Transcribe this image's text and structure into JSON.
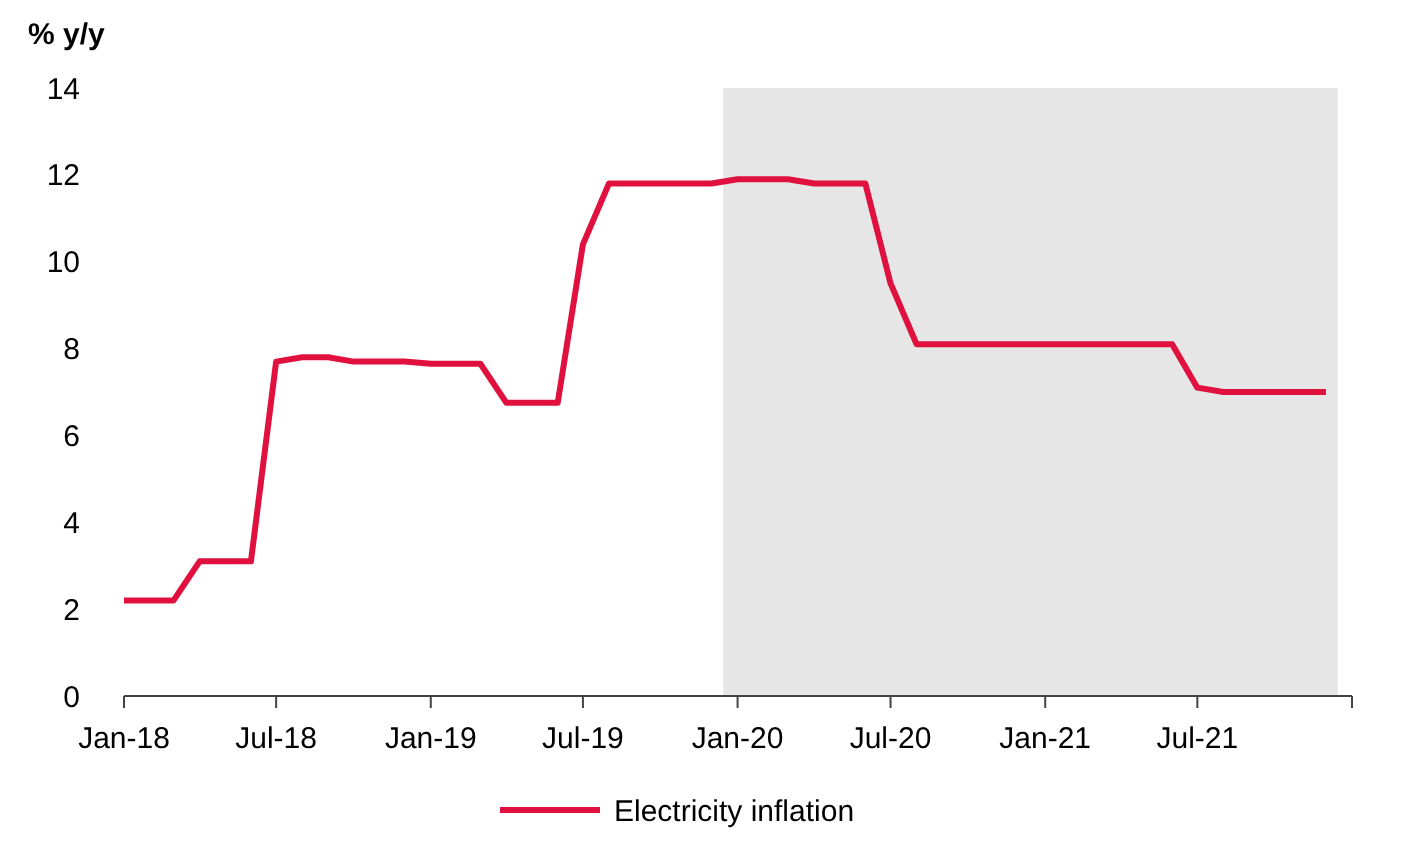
{
  "chart_data": {
    "type": "line",
    "ylabel": "% y/y",
    "x": [
      "2018-01",
      "2018-02",
      "2018-03",
      "2018-04",
      "2018-05",
      "2018-06",
      "2018-07",
      "2018-08",
      "2018-09",
      "2018-10",
      "2018-11",
      "2018-12",
      "2019-01",
      "2019-02",
      "2019-03",
      "2019-04",
      "2019-05",
      "2019-06",
      "2019-07",
      "2019-08",
      "2019-09",
      "2019-10",
      "2019-11",
      "2019-12",
      "2020-01",
      "2020-02",
      "2020-03",
      "2020-04",
      "2020-05",
      "2020-06",
      "2020-07",
      "2020-08",
      "2020-09",
      "2020-10",
      "2020-11",
      "2020-12",
      "2021-01",
      "2021-02",
      "2021-03",
      "2021-04",
      "2021-05",
      "2021-06",
      "2021-07",
      "2021-08",
      "2021-09",
      "2021-10",
      "2021-11",
      "2021-12"
    ],
    "series": [
      {
        "name": "Electricity inflation",
        "color": "#e0103f",
        "values": [
          2.2,
          2.2,
          2.2,
          3.1,
          3.1,
          3.1,
          7.7,
          7.8,
          7.8,
          7.7,
          7.7,
          7.7,
          7.65,
          7.65,
          7.65,
          6.75,
          6.75,
          6.75,
          10.4,
          11.8,
          11.8,
          11.8,
          11.8,
          11.8,
          11.9,
          11.9,
          11.9,
          11.8,
          11.8,
          11.8,
          9.5,
          8.1,
          8.1,
          8.1,
          8.1,
          8.1,
          8.1,
          8.1,
          8.1,
          8.1,
          8.1,
          8.1,
          7.1,
          7.0,
          7.0,
          7.0,
          7.0,
          7.0
        ]
      }
    ],
    "xlim": [
      "2018-01",
      "2022-01"
    ],
    "xticks": [
      {
        "value": "2018-01",
        "label": "Jan-18"
      },
      {
        "value": "2018-07",
        "label": "Jul-18"
      },
      {
        "value": "2019-01",
        "label": "Jan-19"
      },
      {
        "value": "2019-07",
        "label": "Jul-19"
      },
      {
        "value": "2020-01",
        "label": "Jan-20"
      },
      {
        "value": "2020-07",
        "label": "Jul-20"
      },
      {
        "value": "2021-01",
        "label": "Jan-21"
      },
      {
        "value": "2021-07",
        "label": "Jul-21"
      },
      {
        "value": "2022-01",
        "label": null
      }
    ],
    "ylim": [
      0,
      14
    ],
    "yticks": [
      0,
      2,
      4,
      6,
      8,
      10,
      12,
      14
    ],
    "bands": [
      {
        "axis": "x",
        "from": "2019-12-15",
        "to": "2021-12-15",
        "color": "#e6e6e6"
      }
    ],
    "legend": "bottom",
    "grid": false,
    "marker": "none",
    "line_style": "solid"
  }
}
